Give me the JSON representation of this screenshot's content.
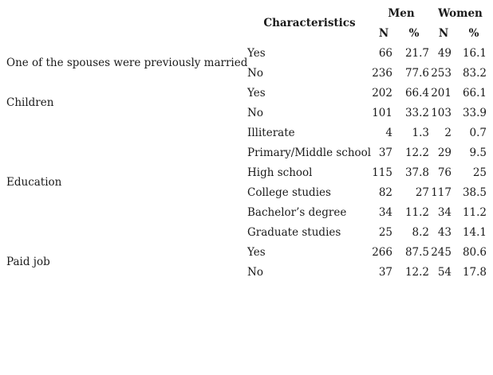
{
  "header": {
    "characteristics": "Characteristics",
    "men": "Men",
    "women": "Women",
    "n": "N",
    "pct": "%"
  },
  "groups": [
    {
      "label": "One of the spouses were previously married"
    },
    {
      "label": "Children"
    },
    {
      "label": "Education"
    },
    {
      "label": "Paid job"
    }
  ],
  "rows": [
    {
      "category": "Yes",
      "men_n": "66",
      "men_pct": "21.7",
      "women_n": "49",
      "women_pct": "16.1"
    },
    {
      "category": "No",
      "men_n": "236",
      "men_pct": "77.6",
      "women_n": "253",
      "women_pct": "83.2"
    },
    {
      "category": "Yes",
      "men_n": "202",
      "men_pct": "66.4",
      "women_n": "201",
      "women_pct": "66.1"
    },
    {
      "category": "No",
      "men_n": "101",
      "men_pct": "33.2",
      "women_n": "103",
      "women_pct": "33.9"
    },
    {
      "category": "Illiterate",
      "men_n": "4",
      "men_pct": "1.3",
      "women_n": "2",
      "women_pct": "0.7"
    },
    {
      "category": "Primary/Middle school",
      "men_n": "37",
      "men_pct": "12.2",
      "women_n": "29",
      "women_pct": "9.5"
    },
    {
      "category": "High school",
      "men_n": "115",
      "men_pct": "37.8",
      "women_n": "76",
      "women_pct": "25"
    },
    {
      "category": "College studies",
      "men_n": "82",
      "men_pct": "27",
      "women_n": "117",
      "women_pct": "38.5"
    },
    {
      "category": "Bachelor’s degree",
      "men_n": "34",
      "men_pct": "11.2",
      "women_n": "34",
      "women_pct": "11.2"
    },
    {
      "category": "Graduate studies",
      "men_n": "25",
      "men_pct": "8.2",
      "women_n": "43",
      "women_pct": "14.1"
    },
    {
      "category": "Yes",
      "men_n": "266",
      "men_pct": "87.5",
      "women_n": "245",
      "women_pct": "80.6"
    },
    {
      "category": "No",
      "men_n": "37",
      "men_pct": "12.2",
      "women_n": "54",
      "women_pct": "17.8"
    }
  ]
}
